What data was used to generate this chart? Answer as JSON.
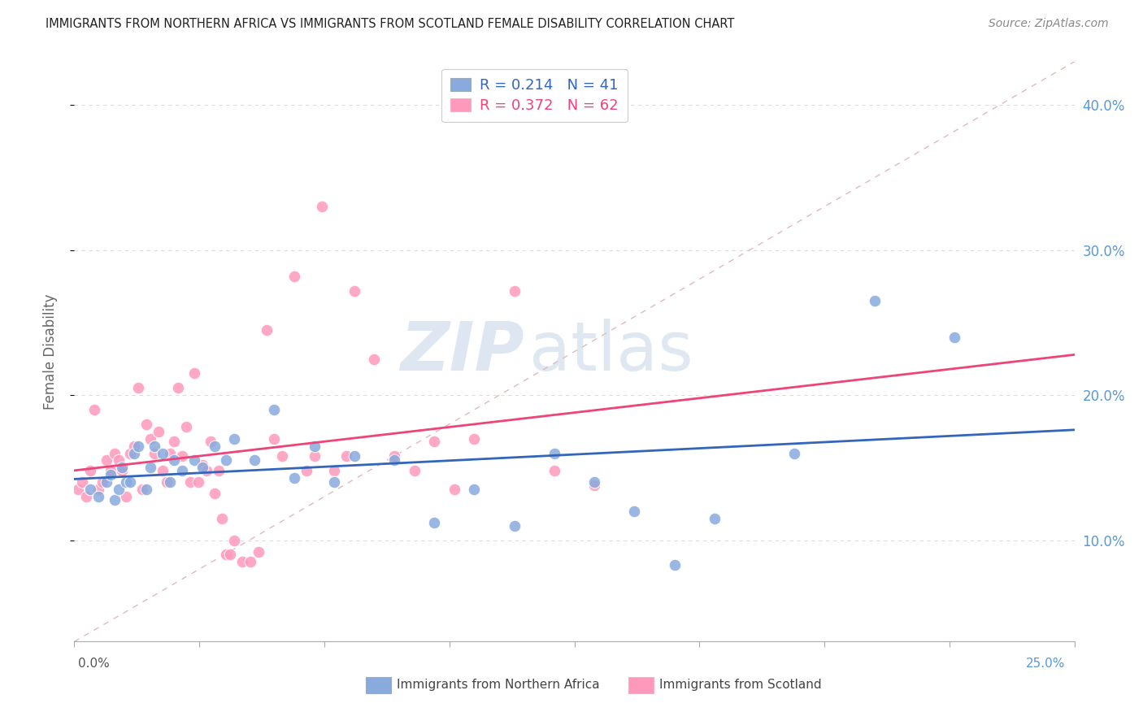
{
  "title": "IMMIGRANTS FROM NORTHERN AFRICA VS IMMIGRANTS FROM SCOTLAND FEMALE DISABILITY CORRELATION CHART",
  "source": "Source: ZipAtlas.com",
  "ylabel": "Female Disability",
  "label1": "Immigrants from Northern Africa",
  "label2": "Immigrants from Scotland",
  "xlim": [
    0.0,
    0.25
  ],
  "ylim": [
    0.03,
    0.43
  ],
  "watermark_zip": "ZIP",
  "watermark_atlas": "atlas",
  "legend_text1": "R = 0.214   N = 41",
  "legend_text2": "R = 0.372   N = 62",
  "blue_color": "#88AADD",
  "pink_color": "#FF99BB",
  "blue_line_color": "#3366BB",
  "pink_line_color": "#EE4477",
  "diag_color": "#DDBBBB",
  "grid_color": "#DDDDDD",
  "title_color": "#222222",
  "source_color": "#888888",
  "right_label_color": "#5599DD",
  "blue_x": [
    0.004,
    0.006,
    0.008,
    0.009,
    0.01,
    0.011,
    0.012,
    0.013,
    0.014,
    0.015,
    0.016,
    0.018,
    0.019,
    0.02,
    0.022,
    0.024,
    0.025,
    0.027,
    0.03,
    0.032,
    0.035,
    0.038,
    0.04,
    0.045,
    0.05,
    0.055,
    0.06,
    0.065,
    0.07,
    0.08,
    0.09,
    0.1,
    0.11,
    0.12,
    0.13,
    0.14,
    0.15,
    0.16,
    0.18,
    0.2,
    0.22
  ],
  "blue_y": [
    0.135,
    0.13,
    0.14,
    0.145,
    0.128,
    0.135,
    0.15,
    0.14,
    0.14,
    0.16,
    0.165,
    0.135,
    0.15,
    0.165,
    0.16,
    0.14,
    0.155,
    0.148,
    0.155,
    0.15,
    0.165,
    0.155,
    0.17,
    0.155,
    0.19,
    0.143,
    0.165,
    0.14,
    0.158,
    0.155,
    0.112,
    0.135,
    0.11,
    0.16,
    0.14,
    0.12,
    0.083,
    0.115,
    0.16,
    0.265,
    0.24
  ],
  "pink_x": [
    0.001,
    0.002,
    0.003,
    0.004,
    0.005,
    0.006,
    0.007,
    0.008,
    0.009,
    0.01,
    0.011,
    0.012,
    0.013,
    0.014,
    0.015,
    0.016,
    0.017,
    0.018,
    0.019,
    0.02,
    0.021,
    0.022,
    0.023,
    0.024,
    0.025,
    0.026,
    0.027,
    0.028,
    0.029,
    0.03,
    0.031,
    0.032,
    0.033,
    0.034,
    0.035,
    0.036,
    0.037,
    0.038,
    0.039,
    0.04,
    0.042,
    0.044,
    0.046,
    0.048,
    0.05,
    0.052,
    0.055,
    0.058,
    0.06,
    0.062,
    0.065,
    0.068,
    0.07,
    0.075,
    0.08,
    0.085,
    0.09,
    0.095,
    0.1,
    0.11,
    0.12,
    0.13
  ],
  "pink_y": [
    0.135,
    0.14,
    0.13,
    0.148,
    0.19,
    0.135,
    0.14,
    0.155,
    0.148,
    0.16,
    0.155,
    0.148,
    0.13,
    0.16,
    0.165,
    0.205,
    0.135,
    0.18,
    0.17,
    0.16,
    0.175,
    0.148,
    0.14,
    0.16,
    0.168,
    0.205,
    0.158,
    0.178,
    0.14,
    0.215,
    0.14,
    0.152,
    0.148,
    0.168,
    0.132,
    0.148,
    0.115,
    0.09,
    0.09,
    0.1,
    0.085,
    0.085,
    0.092,
    0.245,
    0.17,
    0.158,
    0.282,
    0.148,
    0.158,
    0.33,
    0.148,
    0.158,
    0.272,
    0.225,
    0.158,
    0.148,
    0.168,
    0.135,
    0.17,
    0.272,
    0.148,
    0.138
  ]
}
